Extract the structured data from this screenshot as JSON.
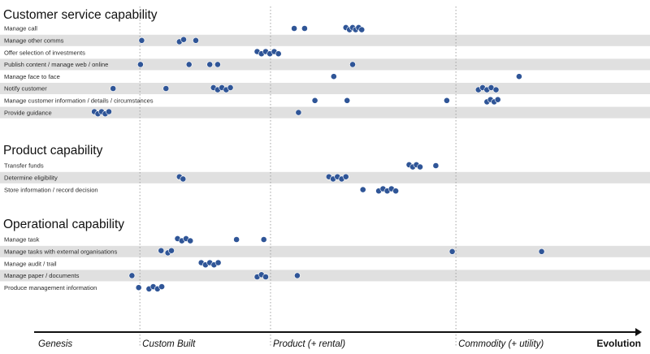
{
  "chart_data": {
    "type": "scatter",
    "title": "",
    "xlabel": "Evolution",
    "xlim": [
      0,
      100
    ],
    "stages": [
      {
        "label": "Genesis",
        "from": 0
      },
      {
        "label": "Custom Built",
        "from": 17.4
      },
      {
        "label": "Product (+ rental)",
        "from": 38.9
      },
      {
        "label": "Commodity (+ utility)",
        "from": 69.4
      }
    ],
    "colors": {
      "point": "#2f5597",
      "band": "#e0e0e0",
      "divider": "#999999",
      "axis": "#111111"
    },
    "sections": [
      {
        "title": "Customer service capability",
        "rows": [
          {
            "label": "Manage call",
            "x": [
              42.8,
              44.5,
              51.3,
              51.9,
              52.4,
              52.9,
              53.4,
              53.9
            ]
          },
          {
            "label": "Manage other comms",
            "x": [
              17.7,
              23.9,
              24.6,
              26.6
            ]
          },
          {
            "label": "Offer selection of investments",
            "x": [
              36.7,
              37.4,
              38.1,
              38.8,
              39.5,
              40.2
            ]
          },
          {
            "label": "Publish content / manage web / online",
            "x": [
              17.5,
              25.5,
              28.9,
              30.2,
              52.4
            ]
          },
          {
            "label": "Manage face to face",
            "x": [
              49.3,
              79.8
            ]
          },
          {
            "label": "Notify customer",
            "x": [
              13.0,
              21.7,
              29.5,
              30.2,
              30.9,
              31.6,
              32.3,
              73.1,
              73.8,
              74.5,
              75.2,
              76.0
            ]
          },
          {
            "label": "Manage customer information / details / circumstances",
            "x": [
              46.2,
              51.5,
              67.9,
              74.5,
              75.1,
              75.7,
              76.3
            ]
          },
          {
            "label": "Provide guidance",
            "x": [
              9.9,
              10.5,
              11.1,
              11.7,
              12.3,
              43.5
            ]
          }
        ]
      },
      {
        "title": "Product capability",
        "rows": [
          {
            "label": "Transfer funds",
            "x": [
              61.7,
              62.3,
              62.9,
              63.5,
              66.1
            ]
          },
          {
            "label": "Determine eligibility",
            "x": [
              23.9,
              24.5,
              48.5,
              49.2,
              49.9,
              50.6,
              51.3
            ]
          },
          {
            "label": "Store information / record decision",
            "x": [
              54.1,
              56.7,
              57.4,
              58.1,
              58.8,
              59.5
            ]
          }
        ]
      },
      {
        "title": "Operational capability",
        "rows": [
          {
            "label": "Manage task",
            "x": [
              23.6,
              24.3,
              25.0,
              25.7,
              33.3,
              37.8
            ]
          },
          {
            "label": "Manage tasks with external organisations",
            "x": [
              20.9,
              22.0,
              22.6,
              68.8,
              83.5
            ]
          },
          {
            "label": "Manage audit / trail",
            "x": [
              27.5,
              28.2,
              28.9,
              29.6,
              30.3
            ]
          },
          {
            "label": "Manage paper / documents",
            "x": [
              16.1,
              36.7,
              37.4,
              38.1,
              43.3
            ]
          },
          {
            "label": "Produce management information",
            "x": [
              17.2,
              18.9,
              19.6,
              20.3,
              21.0
            ]
          }
        ]
      }
    ]
  }
}
